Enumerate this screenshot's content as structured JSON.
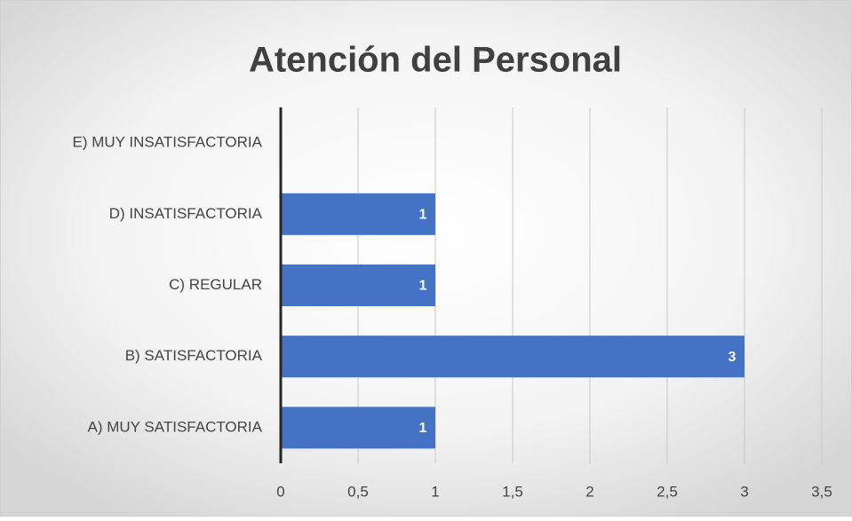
{
  "chart_data": {
    "type": "bar",
    "orientation": "horizontal",
    "title": "Atención del Personal",
    "categories": [
      "E) MUY INSATISFACTORIA",
      "D) INSATISFACTORIA",
      "C) REGULAR",
      "B) SATISFACTORIA",
      "A) MUY SATISFACTORIA"
    ],
    "values": [
      null,
      1,
      1,
      3,
      1
    ],
    "color": "#4472c4",
    "xlim": [
      0,
      3.5
    ],
    "xticks": [
      0,
      {
        "value": 0.5,
        "label": "0,5"
      },
      1,
      {
        "value": 1.5,
        "label": "1,5"
      },
      2,
      {
        "value": 2.5,
        "label": "2,5"
      },
      3,
      {
        "value": 3.5,
        "label": "3,5"
      }
    ],
    "grid": true
  }
}
